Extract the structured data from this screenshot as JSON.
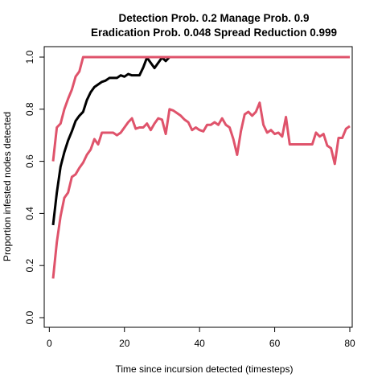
{
  "chart_data": {
    "type": "line",
    "title_line1": "Detection Prob. 0.2 Manage Prob. 0.9",
    "title_line2": "Eradication Prob. 0.048 Spread Reduction 0.999",
    "xlabel": "Time since incursion detected (timesteps)",
    "ylabel": "Proportion infested nodes detected",
    "xlim": [
      1,
      80
    ],
    "ylim": [
      0,
      1
    ],
    "x_ticks": [
      0,
      20,
      40,
      60,
      80
    ],
    "x_tick_labels": [
      "0",
      "20",
      "40",
      "60",
      "80"
    ],
    "y_ticks": [
      0.0,
      0.2,
      0.4,
      0.6,
      0.8,
      1.0
    ],
    "y_tick_labels": [
      "0.0",
      "0.2",
      "0.4",
      "0.6",
      "0.8",
      "1.0"
    ],
    "series": [
      {
        "color": "#000000",
        "x": [
          1,
          2,
          3,
          4,
          5,
          6,
          7,
          8,
          9,
          10,
          11,
          12,
          13,
          14,
          15,
          16,
          17,
          18,
          19,
          20,
          21,
          22,
          23,
          24,
          25,
          26,
          27,
          28,
          29,
          30,
          31,
          32
        ],
        "values": [
          0.355,
          0.48,
          0.58,
          0.635,
          0.68,
          0.715,
          0.755,
          0.775,
          0.79,
          0.835,
          0.865,
          0.885,
          0.895,
          0.905,
          0.91,
          0.92,
          0.92,
          0.92,
          0.93,
          0.925,
          0.935,
          0.93,
          0.93,
          0.93,
          0.96,
          0.998,
          0.978,
          0.958,
          0.978,
          0.998,
          0.985,
          1.0
        ]
      },
      {
        "color": "#DF536B",
        "x": [
          1,
          2,
          3,
          4,
          5,
          6,
          7,
          8,
          9,
          10,
          80
        ],
        "values": [
          0.6,
          0.73,
          0.745,
          0.8,
          0.84,
          0.875,
          0.925,
          0.945,
          1.0,
          1.0,
          1.0
        ]
      },
      {
        "color": "#DF536B",
        "x": [
          1,
          2,
          3,
          4,
          5,
          6,
          7,
          8,
          9,
          10,
          11,
          12,
          13,
          14,
          15,
          16,
          17,
          18,
          19,
          20,
          21,
          22,
          23,
          24,
          25,
          26,
          27,
          28,
          29,
          30,
          31,
          32,
          33,
          34,
          35,
          36,
          37,
          38,
          39,
          40,
          41,
          42,
          43,
          44,
          45,
          46,
          47,
          48,
          49,
          50,
          51,
          52,
          53,
          54,
          55,
          56,
          57,
          58,
          59,
          60,
          61,
          62,
          63,
          64,
          65,
          66,
          67,
          68,
          69,
          70,
          71,
          72,
          73,
          74,
          75,
          76,
          77,
          78,
          79,
          80
        ],
        "values": [
          0.15,
          0.29,
          0.39,
          0.46,
          0.48,
          0.54,
          0.55,
          0.575,
          0.595,
          0.625,
          0.645,
          0.685,
          0.665,
          0.71,
          0.71,
          0.71,
          0.71,
          0.7,
          0.71,
          0.73,
          0.75,
          0.765,
          0.725,
          0.73,
          0.73,
          0.745,
          0.72,
          0.745,
          0.765,
          0.76,
          0.705,
          0.8,
          0.795,
          0.785,
          0.775,
          0.76,
          0.75,
          0.72,
          0.73,
          0.72,
          0.715,
          0.74,
          0.74,
          0.75,
          0.74,
          0.765,
          0.74,
          0.73,
          0.685,
          0.625,
          0.715,
          0.78,
          0.79,
          0.775,
          0.79,
          0.825,
          0.74,
          0.71,
          0.72,
          0.705,
          0.71,
          0.695,
          0.77,
          0.665,
          0.665,
          0.665,
          0.665,
          0.665,
          0.665,
          0.665,
          0.71,
          0.695,
          0.705,
          0.66,
          0.65,
          0.59,
          0.69,
          0.69,
          0.725,
          0.735
        ]
      }
    ]
  }
}
